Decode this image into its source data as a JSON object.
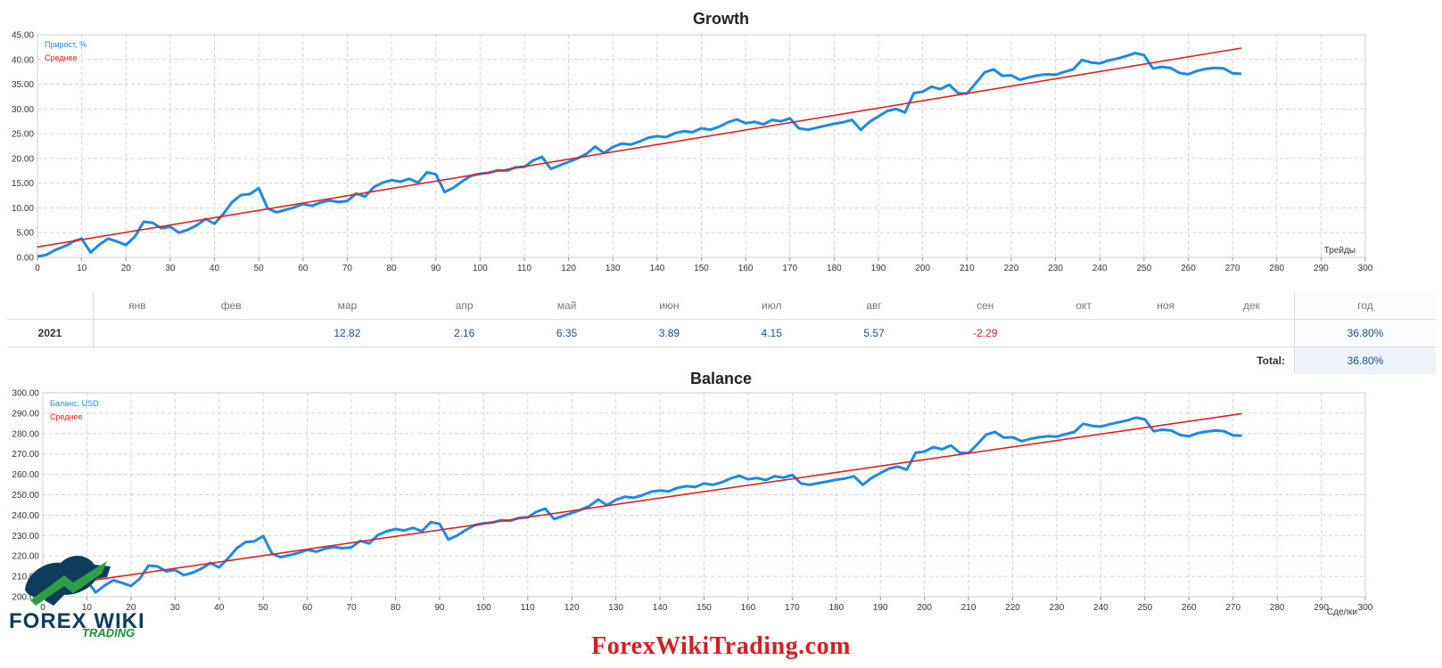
{
  "growth": {
    "title": "Growth",
    "chart_data": {
      "type": "line",
      "title": "Growth",
      "xlabel": "Трейды",
      "ylabel": "",
      "xlim": [
        0,
        300
      ],
      "ylim": [
        0,
        45
      ],
      "x_ticks": [
        "0",
        "10",
        "20",
        "30",
        "40",
        "50",
        "60",
        "70",
        "80",
        "90",
        "100",
        "110",
        "120",
        "130",
        "140",
        "150",
        "160",
        "170",
        "180",
        "190",
        "200",
        "210",
        "220",
        "230",
        "240",
        "250",
        "260",
        "270",
        "280",
        "290",
        "300"
      ],
      "y_ticks": [
        "0.00",
        "5.00",
        "10.00",
        "15.00",
        "20.00",
        "25.00",
        "30.00",
        "35.00",
        "40.00",
        "45.00"
      ],
      "grid": true,
      "legend": "top-left",
      "series": [
        {
          "name": "Прирост, %",
          "color": "#1e88e5",
          "x": [
            0,
            2,
            4,
            7,
            8,
            10,
            12,
            14,
            16,
            18,
            20,
            22,
            24,
            26,
            28,
            30,
            32,
            34,
            36,
            38,
            40,
            42,
            44,
            46,
            48,
            50,
            52,
            54,
            56,
            58,
            60,
            62,
            64,
            66,
            68,
            70,
            72,
            74,
            76,
            78,
            80,
            82,
            84,
            86,
            88,
            90,
            92,
            94,
            96,
            98,
            100,
            102,
            104,
            106,
            108,
            110,
            112,
            114,
            116,
            118,
            120,
            122,
            124,
            126,
            128,
            130,
            132,
            134,
            136,
            138,
            140,
            142,
            144,
            146,
            148,
            150,
            152,
            154,
            156,
            158,
            160,
            162,
            164,
            166,
            168,
            170,
            172,
            174,
            176,
            178,
            180,
            182,
            184,
            186,
            188,
            190,
            192,
            194,
            196,
            198,
            200,
            202,
            204,
            206,
            208,
            210,
            212,
            214,
            216,
            218,
            220,
            222,
            224,
            226,
            228,
            230,
            232,
            234,
            236,
            238,
            240,
            242,
            244,
            246,
            248,
            250,
            252,
            254,
            256,
            258,
            260,
            262,
            264,
            266,
            268,
            270,
            272
          ],
          "values": [
            0.2,
            0.5,
            1.5,
            2.6,
            3.2,
            3.8,
            1.0,
            2.6,
            3.8,
            3.2,
            2.5,
            4.2,
            7.2,
            7.0,
            5.9,
            6.2,
            5.0,
            5.6,
            6.5,
            7.8,
            6.8,
            8.8,
            11.2,
            12.6,
            12.8,
            14.0,
            9.9,
            9.1,
            9.6,
            10.1,
            10.8,
            10.4,
            11.1,
            11.5,
            11.2,
            11.4,
            12.9,
            12.3,
            14.2,
            15.1,
            15.6,
            15.3,
            15.9,
            15.1,
            17.2,
            16.8,
            13.2,
            14.1,
            15.4,
            16.5,
            16.9,
            17.1,
            17.6,
            17.5,
            18.2,
            18.3,
            19.6,
            20.3,
            17.9,
            18.6,
            19.3,
            20.0,
            20.9,
            22.4,
            21.1,
            22.3,
            23.0,
            22.8,
            23.4,
            24.2,
            24.5,
            24.3,
            25.1,
            25.5,
            25.3,
            26.1,
            25.8,
            26.4,
            27.3,
            27.9,
            27.1,
            27.4,
            26.9,
            27.8,
            27.5,
            28.1,
            26.1,
            25.8,
            26.2,
            26.6,
            27.0,
            27.3,
            27.8,
            25.8,
            27.4,
            28.5,
            29.6,
            30.0,
            29.3,
            33.2,
            33.5,
            34.5,
            34.0,
            34.9,
            33.2,
            33.1,
            35.2,
            37.4,
            38.0,
            36.7,
            36.8,
            35.9,
            36.4,
            36.8,
            37.0,
            36.9,
            37.5,
            38.0,
            39.9,
            39.4,
            39.2,
            39.8,
            40.2,
            40.7,
            41.3,
            40.9,
            38.2,
            38.5,
            38.3,
            37.3,
            37.0,
            37.7,
            38.1,
            38.3,
            38.2,
            37.2,
            37.1
          ]
        },
        {
          "name": "Среднее",
          "color": "#e02020",
          "x": [
            0,
            272
          ],
          "values": [
            2.1,
            42.3
          ]
        }
      ]
    }
  },
  "stats": {
    "months": [
      "янв",
      "фев",
      "мар",
      "апр",
      "май",
      "июн",
      "июл",
      "авг",
      "сен",
      "окт",
      "ноя",
      "дек"
    ],
    "year_header": "год",
    "rows": [
      {
        "year": "2021",
        "values": [
          "",
          "",
          "12.82",
          "2.16",
          "6.35",
          "3.89",
          "4.15",
          "5.57",
          "-2.29",
          "",
          "",
          ""
        ],
        "total": "36.80%"
      }
    ],
    "total_label": "Total:",
    "total_value": "36.80%"
  },
  "balance": {
    "title": "Balance",
    "chart_data": {
      "type": "line",
      "title": "Balance",
      "xlabel": "Сделки",
      "ylabel": "",
      "xlim": [
        0,
        300
      ],
      "ylim": [
        200,
        300
      ],
      "x_ticks": [
        "0",
        "10",
        "20",
        "30",
        "40",
        "50",
        "60",
        "70",
        "80",
        "90",
        "100",
        "110",
        "120",
        "130",
        "140",
        "150",
        "160",
        "170",
        "180",
        "190",
        "200",
        "210",
        "220",
        "230",
        "240",
        "250",
        "260",
        "270",
        "280",
        "290",
        "300"
      ],
      "y_ticks": [
        "200.00",
        "210.00",
        "220.00",
        "230.00",
        "240.00",
        "250.00",
        "260.00",
        "270.00",
        "280.00",
        "290.00",
        "300.00"
      ],
      "grid": true,
      "legend": "top-left",
      "series": [
        {
          "name": "Баланс, USD",
          "color": "#1e88e5",
          "x": [
            0,
            2,
            4,
            7,
            8,
            10,
            12,
            14,
            16,
            18,
            20,
            22,
            24,
            26,
            28,
            30,
            32,
            34,
            36,
            38,
            40,
            42,
            44,
            46,
            48,
            50,
            52,
            54,
            56,
            58,
            60,
            62,
            64,
            66,
            68,
            70,
            72,
            74,
            76,
            78,
            80,
            82,
            84,
            86,
            88,
            90,
            92,
            94,
            96,
            98,
            100,
            102,
            104,
            106,
            108,
            110,
            112,
            114,
            116,
            118,
            120,
            122,
            124,
            126,
            128,
            130,
            132,
            134,
            136,
            138,
            140,
            142,
            144,
            146,
            148,
            150,
            152,
            154,
            156,
            158,
            160,
            162,
            164,
            166,
            168,
            170,
            172,
            174,
            176,
            178,
            180,
            182,
            184,
            186,
            188,
            190,
            192,
            194,
            196,
            198,
            200,
            202,
            204,
            206,
            208,
            210,
            212,
            214,
            216,
            218,
            220,
            222,
            224,
            226,
            228,
            230,
            232,
            234,
            236,
            238,
            240,
            242,
            244,
            246,
            248,
            250,
            252,
            254,
            256,
            258,
            260,
            262,
            264,
            266,
            268,
            270,
            272
          ],
          "values": [
            200.4,
            201.0,
            203.1,
            205.5,
            206.8,
            208.1,
            202.1,
            205.5,
            208.1,
            206.8,
            205.3,
            208.9,
            215.3,
            214.9,
            212.5,
            213.1,
            210.6,
            211.8,
            213.8,
            216.5,
            214.4,
            218.7,
            223.8,
            226.8,
            227.2,
            229.8,
            221.1,
            219.4,
            220.4,
            221.5,
            223.0,
            222.1,
            223.6,
            224.4,
            223.8,
            224.2,
            227.4,
            226.1,
            230.2,
            232.1,
            233.2,
            232.5,
            233.8,
            232.1,
            236.6,
            235.7,
            228.1,
            230.0,
            232.8,
            235.1,
            236.0,
            236.4,
            237.5,
            237.2,
            238.7,
            238.9,
            241.7,
            243.2,
            238.1,
            239.6,
            241.1,
            242.6,
            244.5,
            247.7,
            244.9,
            247.5,
            249.0,
            248.5,
            249.8,
            251.5,
            252.1,
            251.7,
            253.4,
            254.2,
            253.8,
            255.5,
            254.9,
            256.1,
            258.0,
            259.3,
            257.6,
            258.2,
            257.2,
            259.1,
            258.4,
            259.7,
            255.5,
            254.9,
            255.7,
            256.5,
            257.4,
            258.0,
            259.1,
            254.9,
            258.2,
            260.6,
            262.9,
            263.8,
            262.3,
            270.6,
            271.2,
            273.4,
            272.3,
            274.2,
            270.6,
            270.4,
            274.8,
            279.5,
            280.8,
            278.0,
            278.2,
            276.3,
            277.4,
            278.2,
            278.7,
            278.5,
            279.7,
            280.8,
            284.8,
            283.8,
            283.4,
            284.6,
            285.5,
            286.5,
            287.8,
            287.0,
            281.2,
            281.9,
            281.5,
            279.3,
            278.7,
            280.2,
            281.0,
            281.5,
            281.2,
            279.1,
            278.9
          ]
        },
        {
          "name": "Среднее",
          "color": "#e02020",
          "x": [
            0,
            272
          ],
          "values": [
            204.5,
            289.8
          ]
        }
      ]
    }
  },
  "logo": {
    "brand": "FOREX WIKI",
    "sub": "TRADING"
  },
  "watermark": "ForexWikiTrading.com"
}
